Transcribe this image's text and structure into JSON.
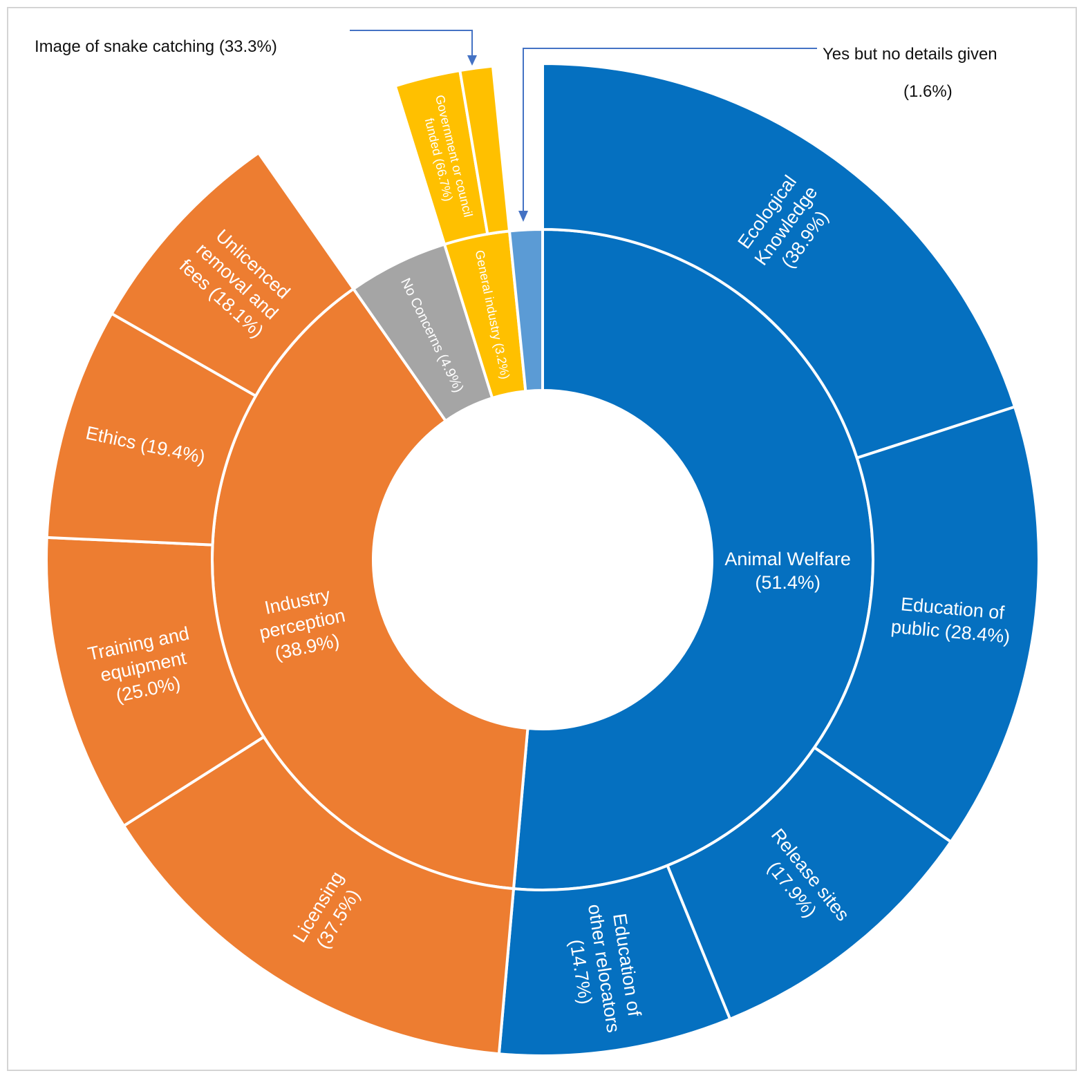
{
  "chart_data": {
    "type": "sunburst",
    "title": "",
    "colors": {
      "animal_welfare": "#0570c0",
      "industry": "#ed7d31",
      "no_concerns": "#a5a5a5",
      "general": "#ffc000",
      "yes_no_details": "#5b9bd5",
      "separator": "#ffffff",
      "leader": "#4472c4"
    },
    "inner_ring": [
      {
        "name": "Animal Welfare",
        "value": 51.4,
        "label": [
          "Animal Welfare",
          "(51.4%)"
        ],
        "color_key": "animal_welfare"
      },
      {
        "name": "Industry perception",
        "value": 38.9,
        "label": [
          "Industry",
          "perception",
          "(38.9%)"
        ],
        "color_key": "industry"
      },
      {
        "name": "No Concerns",
        "value": 4.9,
        "label": [
          "No Concerns (4.9%)"
        ],
        "color_key": "no_concerns"
      },
      {
        "name": "General industry",
        "value": 3.2,
        "label": [
          "General industry (3.2%)"
        ],
        "color_key": "general"
      },
      {
        "name": "Yes but no details given",
        "value": 1.6,
        "label": [],
        "color_key": "yes_no_details"
      }
    ],
    "outer_ring": [
      {
        "parent": "Animal Welfare",
        "name": "Ecological Knowledge",
        "value": 38.9,
        "label": [
          "Ecological",
          "Knowledge",
          "(38.9%)"
        ]
      },
      {
        "parent": "Animal Welfare",
        "name": "Education of public",
        "value": 28.4,
        "label": [
          "Education of",
          "public (28.4%)"
        ]
      },
      {
        "parent": "Animal Welfare",
        "name": "Release sites",
        "value": 17.9,
        "label": [
          "Release sites",
          "(17.9%)"
        ]
      },
      {
        "parent": "Animal Welfare",
        "name": "Education of other relocators",
        "value": 14.7,
        "label": [
          "Education of",
          "other relocators",
          "(14.7%)"
        ]
      },
      {
        "parent": "Industry perception",
        "name": "Licensing",
        "value": 37.5,
        "label": [
          "Licensing",
          "(37.5%)"
        ]
      },
      {
        "parent": "Industry perception",
        "name": "Training and equipment",
        "value": 25.0,
        "label": [
          "Training and",
          "equipment",
          "(25.0%)"
        ]
      },
      {
        "parent": "Industry perception",
        "name": "Ethics",
        "value": 19.4,
        "label": [
          "Ethics (19.4%)"
        ]
      },
      {
        "parent": "Industry perception",
        "name": "Unlicenced removal and fees",
        "value": 18.1,
        "label": [
          "Unlicenced",
          "removal and",
          "fees (18.1%)"
        ]
      },
      {
        "parent": "General industry",
        "name": "Government or council funded",
        "value": 66.7,
        "label": [
          "Government or council",
          "funded (66.7%)"
        ]
      },
      {
        "parent": "General industry",
        "name": "Image of snake catching",
        "value": 33.3,
        "label": []
      }
    ],
    "callouts": [
      {
        "name": "image-of-snake-catching",
        "lines": [
          "Image of snake catching (33.3%)"
        ]
      },
      {
        "name": "yes-but-no-details",
        "lines": [
          "Yes but no details given",
          "(1.6%)"
        ]
      }
    ]
  }
}
